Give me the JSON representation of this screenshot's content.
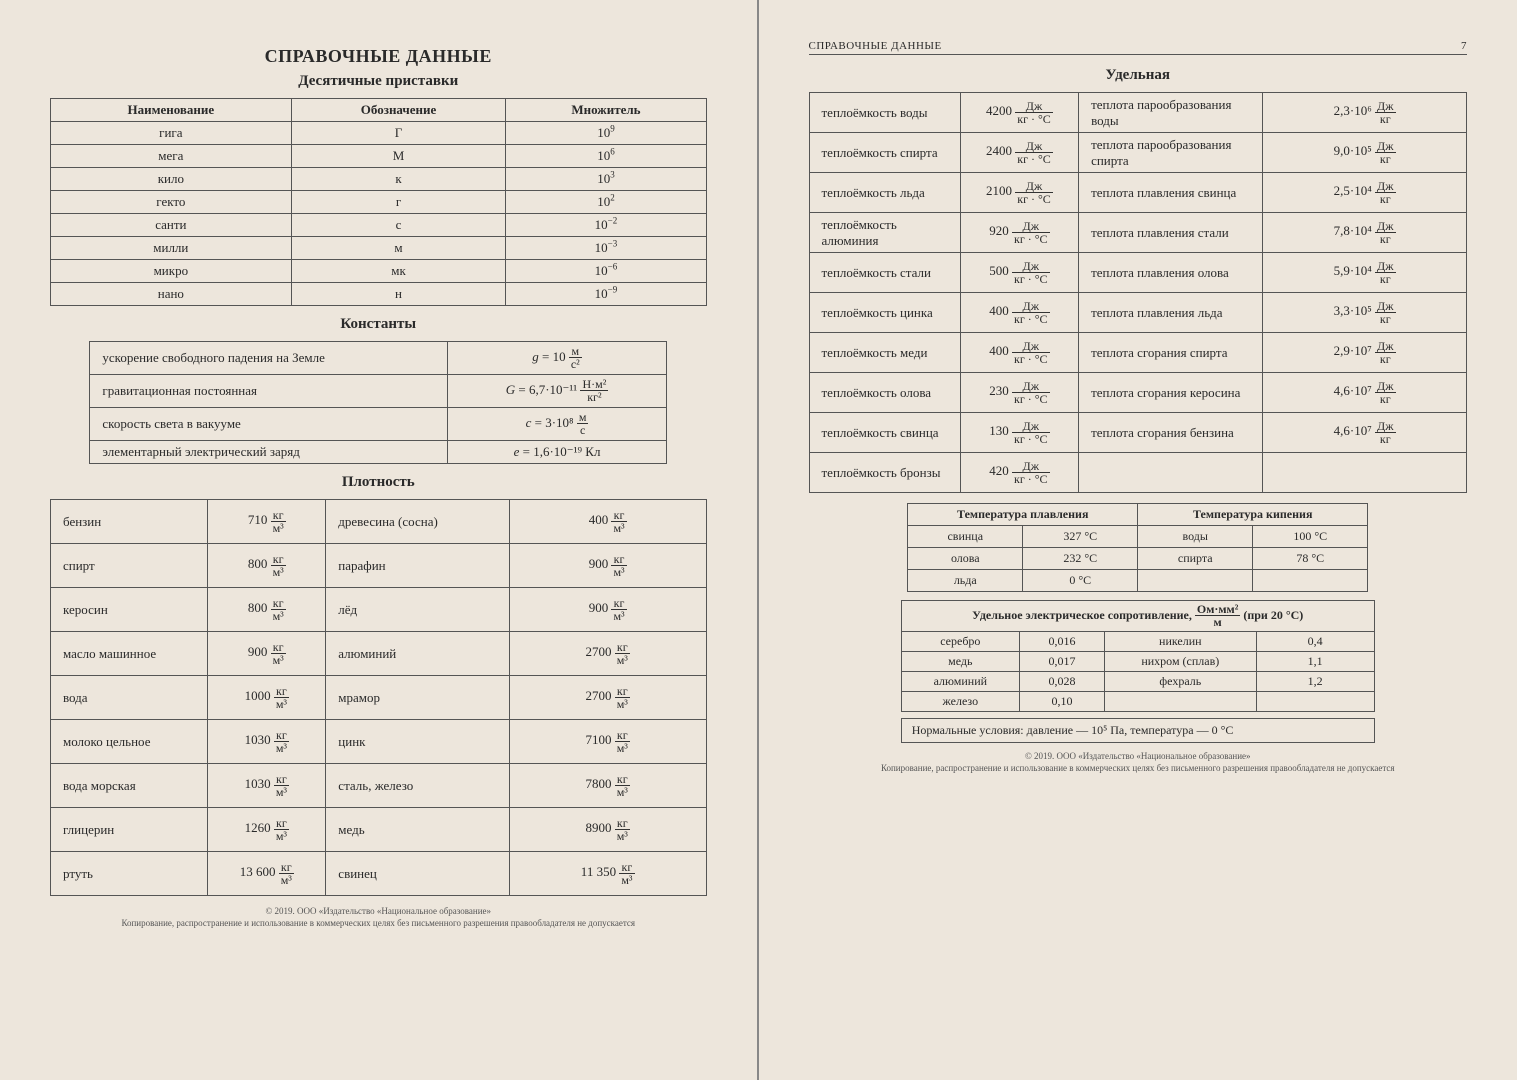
{
  "left": {
    "mainTitle": "СПРАВОЧНЫЕ ДАННЫЕ",
    "prefixesTitle": "Десятичные приставки",
    "prefixesCols": [
      "Наименование",
      "Обозначение",
      "Множитель"
    ],
    "prefixes": [
      {
        "name": "гига",
        "sym": "Г",
        "exp": "9"
      },
      {
        "name": "мега",
        "sym": "М",
        "exp": "6"
      },
      {
        "name": "кило",
        "sym": "к",
        "exp": "3"
      },
      {
        "name": "гекто",
        "sym": "г",
        "exp": "2"
      },
      {
        "name": "санти",
        "sym": "с",
        "exp": "−2"
      },
      {
        "name": "милли",
        "sym": "м",
        "exp": "−3"
      },
      {
        "name": "микро",
        "sym": "мк",
        "exp": "−6"
      },
      {
        "name": "нано",
        "sym": "н",
        "exp": "−9"
      }
    ],
    "constantsTitle": "Константы",
    "constants": [
      {
        "label": "ускорение свободного падения на Земле",
        "sym": "g",
        "val": "10",
        "unitNum": "м",
        "unitDen": "с²"
      },
      {
        "label": "гравитационная постоянная",
        "sym": "G",
        "val": "6,7·10⁻¹¹",
        "unitNum": "Н·м²",
        "unitDen": "кг²"
      },
      {
        "label": "скорость света в вакууме",
        "sym": "c",
        "val": "3·10⁸",
        "unitNum": "м",
        "unitDen": "с"
      },
      {
        "label": "элементарный электрический заряд",
        "sym": "e",
        "val": "1,6·10⁻¹⁹",
        "unitPlain": "Кл"
      }
    ],
    "densityTitle": "Плотность",
    "densityUnit": {
      "num": "кг",
      "den": "м³"
    },
    "density": [
      {
        "l": "бензин",
        "lv": "710",
        "r": "древесина (сосна)",
        "rv": "400"
      },
      {
        "l": "спирт",
        "lv": "800",
        "r": "парафин",
        "rv": "900"
      },
      {
        "l": "керосин",
        "lv": "800",
        "r": "лёд",
        "rv": "900"
      },
      {
        "l": "масло машинное",
        "lv": "900",
        "r": "алюминий",
        "rv": "2700"
      },
      {
        "l": "вода",
        "lv": "1000",
        "r": "мрамор",
        "rv": "2700"
      },
      {
        "l": "молоко цельное",
        "lv": "1030",
        "r": "цинк",
        "rv": "7100"
      },
      {
        "l": "вода морская",
        "lv": "1030",
        "r": "сталь, железо",
        "rv": "7800"
      },
      {
        "l": "глицерин",
        "lv": "1260",
        "r": "медь",
        "rv": "8900"
      },
      {
        "l": "ртуть",
        "lv": "13 600",
        "r": "свинец",
        "rv": "11 350"
      }
    ],
    "footer1": "© 2019. ООО «Издательство «Национальное образование»",
    "footer2": "Копирование, распространение и использование в коммерческих целях без письменного разрешения правообладателя не допускается"
  },
  "right": {
    "headerLabel": "СПРАВОЧНЫЕ ДАННЫЕ",
    "pageNum": "7",
    "specificTitle": "Удельная",
    "heatUnit": {
      "num": "Дж",
      "den": "кг · °С"
    },
    "latentUnit": {
      "num": "Дж",
      "den": "кг"
    },
    "specific": [
      {
        "l": "теплоёмкость воды",
        "lv": "4200",
        "r": "теплота парообразования воды",
        "rv": "2,3·10⁶"
      },
      {
        "l": "теплоёмкость спирта",
        "lv": "2400",
        "r": "теплота парообразования спирта",
        "rv": "9,0·10⁵"
      },
      {
        "l": "теплоёмкость льда",
        "lv": "2100",
        "r": "теплота плавления свинца",
        "rv": "2,5·10⁴"
      },
      {
        "l": "теплоёмкость алюминия",
        "lv": "920",
        "r": "теплота плавления стали",
        "rv": "7,8·10⁴"
      },
      {
        "l": "теплоёмкость стали",
        "lv": "500",
        "r": "теплота плавления олова",
        "rv": "5,9·10⁴"
      },
      {
        "l": "теплоёмкость цинка",
        "lv": "400",
        "r": "теплота плавления льда",
        "rv": "3,3·10⁵"
      },
      {
        "l": "теплоёмкость меди",
        "lv": "400",
        "r": "теплота сгорания спирта",
        "rv": "2,9·10⁷"
      },
      {
        "l": "теплоёмкость олова",
        "lv": "230",
        "r": "теплота сгорания керосина",
        "rv": "4,6·10⁷"
      },
      {
        "l": "теплоёмкость свинца",
        "lv": "130",
        "r": "теплота сгорания бензина",
        "rv": "4,6·10⁷"
      },
      {
        "l": "теплоёмкость бронзы",
        "lv": "420",
        "r": "",
        "rv": ""
      }
    ],
    "tempsHeaders": [
      "Температура плавления",
      "Температура кипения"
    ],
    "temps": [
      {
        "l": "свинца",
        "lv": "327 °С",
        "r": "воды",
        "rv": "100 °С"
      },
      {
        "l": "олова",
        "lv": "232 °С",
        "r": "спирта",
        "rv": "78 °С"
      },
      {
        "l": "льда",
        "lv": "0 °С",
        "r": "",
        "rv": ""
      }
    ],
    "resistTitlePrefix": "Удельное электрическое сопротивление, ",
    "resistUnit": {
      "num": "Ом·мм²",
      "den": "м"
    },
    "resistTitleSuffix": " (при 20 °С)",
    "resist": [
      {
        "l": "серебро",
        "lv": "0,016",
        "r": "никелин",
        "rv": "0,4"
      },
      {
        "l": "медь",
        "lv": "0,017",
        "r": "нихром (сплав)",
        "rv": "1,1"
      },
      {
        "l": "алюминий",
        "lv": "0,028",
        "r": "фехраль",
        "rv": "1,2"
      },
      {
        "l": "железо",
        "lv": "0,10",
        "r": "",
        "rv": ""
      }
    ],
    "normal": "Нормальные условия: давление — 10⁵ Па, температура — 0 °С",
    "footer1": "© 2019. ООО «Издательство «Национальное образование»",
    "footer2": "Копирование, распространение и использование в коммерческих целях без письменного разрешения правообладателя не допускается"
  }
}
